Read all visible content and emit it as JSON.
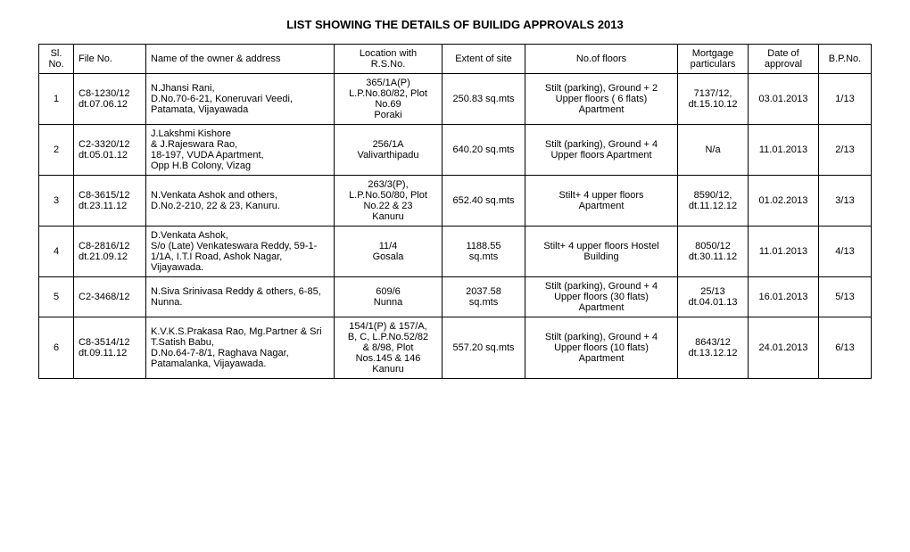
{
  "title": "LIST SHOWING THE DETAILS OF BUILIDG APPROVALS 2013",
  "columns": [
    "Sl.\nNo.",
    "File No.",
    "Name of the owner & address",
    "Location with\nR.S.No.",
    "Extent of site",
    "No.of floors",
    "Mortgage\nparticulars",
    "Date of\napproval",
    "B.P.No."
  ],
  "rows": [
    {
      "sl": "1",
      "file": "C8-1230/12\ndt.07.06.12",
      "owner": "N.Jhansi Rani,\nD.No.70-6-21, Koneruvari Veedi,\nPatamata, Vijayawada",
      "location": "365/1A(P)\nL.P.No.80/82, Plot\nNo.69\nPoraki",
      "extent": "250.83 sq.mts",
      "floors": "Stilt (parking), Ground + 2\nUpper floors ( 6 flats)\nApartment",
      "mortgage": "7137/12,\ndt.15.10.12",
      "date": "03.01.2013",
      "bp": "1/13"
    },
    {
      "sl": "2",
      "file": "C2-3320/12\ndt.05.01.12",
      "owner": "J.Lakshmi Kishore\n& J.Rajeswara Rao,\n18-197, VUDA Apartment,\nOpp H.B Colony, Vizag",
      "location": "256/1A\nValivarthipadu",
      "extent": "640.20 sq.mts",
      "floors": "Stilt (parking), Ground + 4\nUpper floors Apartment",
      "mortgage": "N/a",
      "date": "11.01.2013",
      "bp": "2/13"
    },
    {
      "sl": "3",
      "file": "C8-3615/12\ndt.23.11.12",
      "owner": "N.Venkata Ashok and others,\nD.No.2-210, 22 & 23, Kanuru.",
      "location": "263/3(P),\nL.P.No.50/80, Plot\nNo.22 & 23\nKanuru",
      "extent": "652.40 sq.mts",
      "floors": "Stilt+ 4 upper floors\nApartment",
      "mortgage": "8590/12,\ndt.11.12.12",
      "date": "01.02.2013",
      "bp": "3/13"
    },
    {
      "sl": "4",
      "file": "C8-2816/12\ndt.21.09.12",
      "owner": "D.Venkata Ashok,\nS/o (Late) Venkateswara Reddy, 59-1-1/1A, I.T.I Road, Ashok Nagar, Vijayawada.",
      "location": "11/4\nGosala",
      "extent": "1188.55\nsq.mts",
      "floors": "Stilt+ 4 upper floors Hostel\nBuilding",
      "mortgage": "8050/12\ndt.30.11.12",
      "date": "11.01.2013",
      "bp": "4/13"
    },
    {
      "sl": "5",
      "file": "C2-3468/12",
      "owner": "N.Siva Srinivasa Reddy & others, 6-85, Nunna.",
      "location": "609/6\nNunna",
      "extent": "2037.58\nsq.mts",
      "floors": "Stilt (parking), Ground + 4\nUpper floors (30 flats)\nApartment",
      "mortgage": "25/13\ndt.04.01.13",
      "date": "16.01.2013",
      "bp": "5/13"
    },
    {
      "sl": "6",
      "file": "C8-3514/12\ndt.09.11.12",
      "owner": "K.V.K.S.Prakasa Rao, Mg.Partner & Sri T.Satish Babu,\nD.No.64-7-8/1, Raghava Nagar,\nPatamalanka, Vijayawada.",
      "location": "154/1(P) & 157/A,\nB, C, L.P.No.52/82\n& 8/98, Plot\nNos.145 & 146\nKanuru",
      "extent": "557.20 sq.mts",
      "floors": "Stilt (parking), Ground + 4\nUpper floors (10 flats)\nApartment",
      "mortgage": "8643/12\ndt.13.12.12",
      "date": "24.01.2013",
      "bp": "6/13"
    }
  ]
}
